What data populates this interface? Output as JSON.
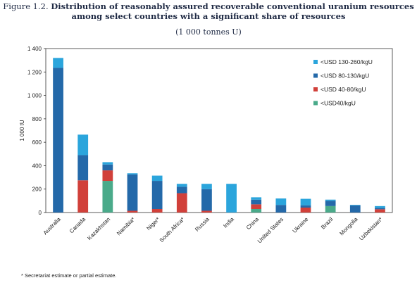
{
  "figure_label": "Figure 1.2.",
  "title_line1": "Distribution of reasonably assured recoverable conventional uranium resources",
  "title_line2": "among select countries with a significant share of resources",
  "subtitle": "(1 000 tonnes U)",
  "footnote": "* Secretariat estimate or partial estimate.",
  "colors": {
    "lt40": "#4aaa8a",
    "40to80": "#d1403a",
    "80to130": "#2469a9",
    "130to260": "#2ba5dc"
  },
  "chart_data": {
    "type": "bar",
    "stacked": true,
    "ylabel": "1 000 tU",
    "ylim": [
      0,
      1400
    ],
    "yticks": [
      0,
      200,
      400,
      600,
      800,
      1000,
      1200,
      1400
    ],
    "ytick_labels": [
      "0",
      "200",
      "400",
      "600",
      "800",
      "1 000",
      "1 200",
      "1 400"
    ],
    "legend_position": "top-right",
    "categories": [
      "Australia",
      "Canada",
      "Kazakhstan",
      "Namibia*",
      "Niger*",
      "South Africa*",
      "Russia",
      "India",
      "China",
      "United States",
      "Ukraine",
      "Brazil",
      "Mongolia",
      "Uzbekistan*"
    ],
    "series": [
      {
        "name": "<USD40/kgU",
        "color_key": "lt40",
        "values": [
          0,
          0,
          270,
          0,
          0,
          0,
          0,
          0,
          30,
          0,
          0,
          55,
          0,
          0
        ]
      },
      {
        "name": "<USD 40-80/kgU",
        "color_key": "40to80",
        "values": [
          0,
          275,
          90,
          15,
          30,
          165,
          15,
          0,
          40,
          0,
          42,
          0,
          0,
          28
        ]
      },
      {
        "name": "<USD 80-130/kgU",
        "color_key": "80to130",
        "values": [
          1235,
          215,
          50,
          310,
          240,
          55,
          185,
          0,
          40,
          65,
          20,
          45,
          60,
          12
        ]
      },
      {
        "name": "<USD 130-260/kgU",
        "color_key": "130to260",
        "values": [
          85,
          175,
          20,
          10,
          45,
          25,
          45,
          245,
          20,
          55,
          55,
          10,
          5,
          15
        ]
      }
    ],
    "legend_order": [
      "<USD 130-260/kgU",
      "<USD 80-130/kgU",
      "<USD 40-80/kgU",
      "<USD40/kgU"
    ]
  }
}
